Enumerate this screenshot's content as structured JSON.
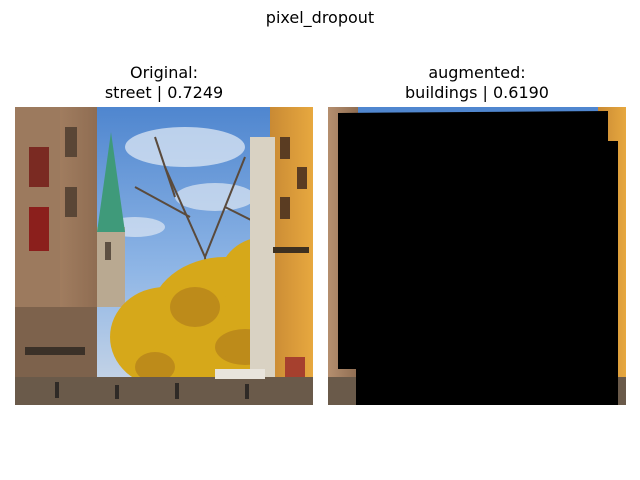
{
  "figure": {
    "suptitle": "pixel_dropout"
  },
  "panels": [
    {
      "heading": "Original:",
      "caption": "street | 0.7249",
      "image_content": "street scene with church spire, autumn tree, buildings"
    },
    {
      "heading": "augmented:",
      "caption": "buildings | 0.6190",
      "image_content": "same street scene with large black dropout region"
    }
  ]
}
